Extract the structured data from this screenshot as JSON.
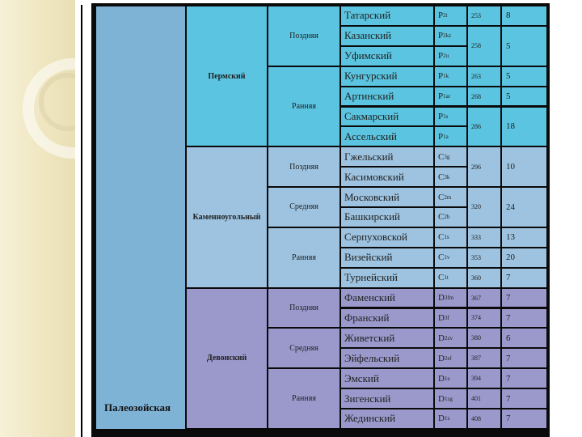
{
  "era": {
    "label": "Палеозойская"
  },
  "periods": [
    {
      "name": "Пермский",
      "color": "#5bc4e0",
      "epochs": [
        {
          "name": "Поздняя",
          "stages": [
            {
              "name": "Татарский",
              "index": "P",
              "index_sub": "2t"
            },
            {
              "name": "Казанский",
              "index": "P",
              "index_sub": "2kz"
            },
            {
              "name": "Уфимский",
              "index": "P",
              "index_sub": "2u"
            }
          ]
        },
        {
          "name": "Ранняя",
          "stages": [
            {
              "name": "Кунгурский",
              "index": "P",
              "index_sub": "1k"
            },
            {
              "name": "Артинский",
              "index": "P",
              "index_sub": "1ar"
            },
            {
              "name": "Сакмарский",
              "index": "P",
              "index_sub": "1s"
            },
            {
              "name": "Ассельский",
              "index": "P",
              "index_sub": "1a"
            }
          ]
        }
      ],
      "age_groups": [
        {
          "age": "253",
          "duration": "8",
          "rows": 1
        },
        {
          "age": "258",
          "duration": "5",
          "rows": 2
        },
        {
          "age": "263",
          "duration": "5",
          "rows": 1
        },
        {
          "age": "268",
          "duration": "5",
          "rows": 1
        },
        {
          "age": "286",
          "duration": "18",
          "rows": 2
        }
      ]
    },
    {
      "name": "Каменноугольный",
      "color": "#9dc3e0",
      "epochs": [
        {
          "name": "Поздняя",
          "stages": [
            {
              "name": "Гжельский",
              "index": "C",
              "index_sub": "3g"
            },
            {
              "name": "Касимовский",
              "index": "C",
              "index_sub": "3k"
            }
          ]
        },
        {
          "name": "Средняя",
          "stages": [
            {
              "name": "Московский",
              "index": "C",
              "index_sub": "2m"
            },
            {
              "name": "Башкирский",
              "index": "C",
              "index_sub": "2b"
            }
          ]
        },
        {
          "name": "Ранняя",
          "stages": [
            {
              "name": "Серпуховской",
              "index": "C",
              "index_sub": "1s"
            },
            {
              "name": "Визейский",
              "index": "C",
              "index_sub": "1v"
            },
            {
              "name": "Турнейский",
              "index": "C",
              "index_sub": "1t"
            }
          ]
        }
      ],
      "age_groups": [
        {
          "age": "296",
          "duration": "10",
          "rows": 2
        },
        {
          "age": "320",
          "duration": "24",
          "rows": 2
        },
        {
          "age": "333",
          "duration": "13",
          "rows": 1
        },
        {
          "age": "353",
          "duration": "20",
          "rows": 1
        },
        {
          "age": "360",
          "duration": "7",
          "rows": 1
        }
      ]
    },
    {
      "name": "Девонский",
      "color": "#9b99cc",
      "epochs": [
        {
          "name": "Поздняя",
          "stages": [
            {
              "name": "Фаменский",
              "index": "D",
              "index_sub": "3fm"
            },
            {
              "name": "Франский",
              "index": "D",
              "index_sub": "3f"
            }
          ]
        },
        {
          "name": "Средняя",
          "stages": [
            {
              "name": "Живетский",
              "index": "D",
              "index_sub": "2zv"
            },
            {
              "name": "Эйфельский",
              "index": "D",
              "index_sub": "2ef"
            }
          ]
        },
        {
          "name": "Ранняя",
          "stages": [
            {
              "name": "Эмский",
              "index": "D",
              "index_sub": "1e"
            },
            {
              "name": "Зигенский",
              "index": "D",
              "index_sub": "1zg"
            },
            {
              "name": "Жединский",
              "index": "D",
              "index_sub": "1z"
            }
          ]
        }
      ],
      "age_groups": [
        {
          "age": "367",
          "duration": "7",
          "rows": 1
        },
        {
          "age": "374",
          "duration": "7",
          "rows": 1
        },
        {
          "age": "380",
          "duration": "6",
          "rows": 1
        },
        {
          "age": "387",
          "duration": "7",
          "rows": 1
        },
        {
          "age": "394",
          "duration": "7",
          "rows": 1
        },
        {
          "age": "401",
          "duration": "7",
          "rows": 1
        },
        {
          "age": "408",
          "duration": "7",
          "rows": 1
        }
      ]
    }
  ]
}
